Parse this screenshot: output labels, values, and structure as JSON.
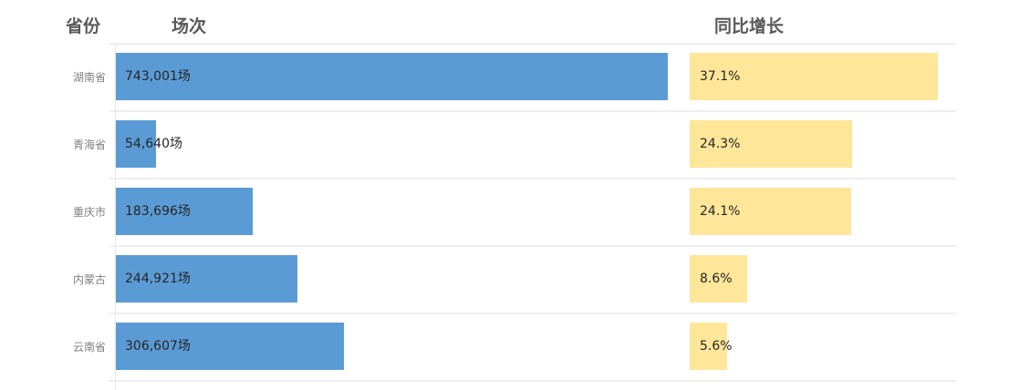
{
  "headers": {
    "province": "省份",
    "sessions": "场次",
    "yoy": "同比增长"
  },
  "chart_data": {
    "type": "bar",
    "orientation": "horizontal",
    "categories": [
      "湖南省",
      "青海省",
      "重庆市",
      "内蒙古",
      "云南省"
    ],
    "series": [
      {
        "name": "场次",
        "values": [
          743001,
          54640,
          183696,
          244921,
          306607
        ],
        "labels": [
          "743,001场",
          "54,640场",
          "183,696场",
          "244,921场",
          "306,607场"
        ],
        "color": "#5b9bd5"
      },
      {
        "name": "同比增长",
        "values": [
          37.1,
          24.3,
          24.1,
          8.6,
          5.6
        ],
        "labels": [
          "37.1%",
          "24.3%",
          "24.1%",
          "8.6%",
          "5.6%"
        ],
        "color": "#ffe699"
      }
    ],
    "grid": false,
    "legend": "none"
  }
}
